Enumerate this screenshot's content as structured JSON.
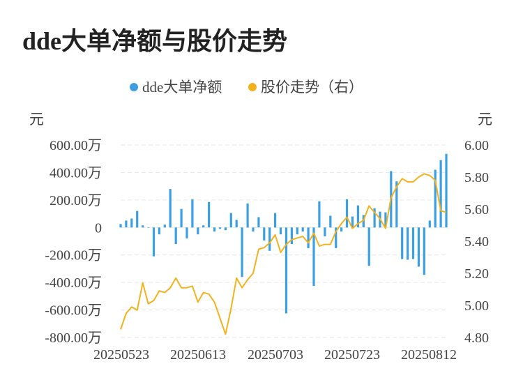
{
  "title": "dde大单净额与股价走势",
  "chart_data": {
    "type": "bar+line",
    "legend": [
      {
        "name": "dde大单净额",
        "color": "#3a9fe3"
      },
      {
        "name": "股价走势（右）",
        "color": "#f1b21e"
      }
    ],
    "legend_position": "top-center",
    "y_left": {
      "unit_label": "元",
      "ticks": [
        "600.00万",
        "400.00万",
        "200.00万",
        "0",
        "-200.00万",
        "-400.00万",
        "-600.00万",
        "-800.00万"
      ],
      "range": [
        -800,
        600
      ]
    },
    "y_right": {
      "unit_label": "元",
      "ticks": [
        "6.00",
        "5.80",
        "5.60",
        "5.40",
        "5.20",
        "5.00",
        "4.80"
      ],
      "range": [
        4.8,
        6.0
      ]
    },
    "x_ticks": [
      "20250523",
      "20250613",
      "20250703",
      "20250723",
      "20250812"
    ],
    "grid": "horizontal dashed",
    "series": [
      {
        "name": "dde大单净额",
        "type": "bar",
        "unit": "万",
        "color": "#3a9fe3",
        "values": [
          25,
          50,
          65,
          120,
          15,
          0,
          -210,
          -50,
          20,
          280,
          -120,
          135,
          -80,
          205,
          -50,
          15,
          185,
          -30,
          -10,
          -20,
          105,
          55,
          -360,
          175,
          -30,
          75,
          -95,
          -170,
          105,
          -50,
          -625,
          -120,
          -50,
          -30,
          -150,
          -425,
          190,
          -65,
          85,
          -150,
          -30,
          205,
          80,
          160,
          90,
          -280,
          140,
          115,
          110,
          410,
          335,
          -230,
          -235,
          -230,
          -285,
          -345,
          50,
          420,
          490,
          535
        ]
      },
      {
        "name": "股价走势（右）",
        "type": "line",
        "unit": "元",
        "color": "#f1b21e",
        "values": [
          4.85,
          4.95,
          4.99,
          4.97,
          5.14,
          5.01,
          5.03,
          5.09,
          5.08,
          5.11,
          5.17,
          5.11,
          5.11,
          5.12,
          5.02,
          5.08,
          5.07,
          5.02,
          4.92,
          4.82,
          4.98,
          5.17,
          5.11,
          5.16,
          5.2,
          5.35,
          5.36,
          5.39,
          5.44,
          5.33,
          5.38,
          5.41,
          5.42,
          5.43,
          5.39,
          5.45,
          5.37,
          5.38,
          5.38,
          5.46,
          5.51,
          5.55,
          5.48,
          5.51,
          5.53,
          5.62,
          5.58,
          5.54,
          5.48,
          5.67,
          5.74,
          5.79,
          5.77,
          5.77,
          5.8,
          5.82,
          5.81,
          5.78,
          5.59,
          5.58
        ]
      }
    ]
  }
}
